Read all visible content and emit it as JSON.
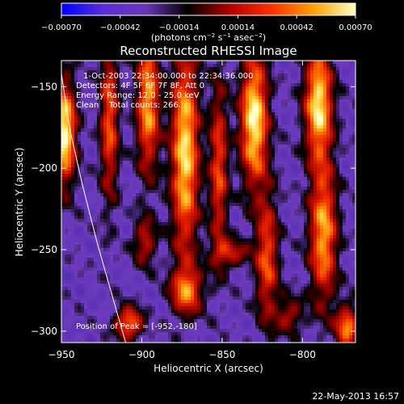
{
  "chart_data": {
    "type": "heatmap",
    "title": "Reconstructed RHESSI Image",
    "xlabel": "Heliocentric X (arcsec)",
    "ylabel": "Heliocentric Y (arcsec)",
    "xlim": [
      -950,
      -767
    ],
    "ylim": [
      -307,
      -134
    ],
    "x_ticks": [
      -950,
      -900,
      -850,
      -800
    ],
    "x_tick_labels": [
      "−950",
      "−900",
      "−850",
      "−800"
    ],
    "y_ticks": [
      -150,
      -200,
      -250,
      -300
    ],
    "y_tick_labels": [
      "−150",
      "−200",
      "−250",
      "−300"
    ],
    "colorbar": {
      "range": [
        -0.0007,
        0.0007
      ],
      "ticks": [
        -0.0007,
        -0.00042,
        -0.00014,
        0.00014,
        0.00042,
        0.0007
      ],
      "tick_labels": [
        "−0.00070",
        "−0.00042",
        "−0.00014",
        "0.00014",
        "0.00042",
        "0.00070"
      ],
      "unit_parts": [
        "(photons cm",
        "−2",
        " s",
        "−1",
        " asec",
        "−2",
        ")"
      ],
      "colors": [
        "#0000ff",
        "#5a2dd8",
        "#6a36b8",
        "#000000",
        "#b00000",
        "#ff3000",
        "#ffa000",
        "#ffffc0"
      ]
    },
    "annotations": {
      "line1": "1-Oct-2003 22:34:00.000 to 22:34:36.000",
      "line2": "Detectors: 4F 5F 6F 7F 8F, Att 0",
      "line3": "Energy Range: 12.0 - 25.0 keV",
      "line4": "Clean    Total counts: 266.",
      "peak": "Position of Peak = [-952,-180]"
    },
    "peak_position": [
      -952,
      -180
    ],
    "limb_curve": [
      [
        -950,
        -142
      ],
      [
        -945,
        -175
      ],
      [
        -937,
        -210
      ],
      [
        -928,
        -245
      ],
      [
        -917,
        -283
      ],
      [
        -910,
        -307
      ]
    ],
    "sources": [
      {
        "x": -948,
        "y": -178,
        "sx": 5,
        "sy": 22,
        "amp": 1.0
      },
      {
        "x": -920,
        "y": -170,
        "sx": 4,
        "sy": 35,
        "amp": 0.62
      },
      {
        "x": -908,
        "y": -295,
        "sx": 6,
        "sy": 7,
        "amp": 0.7
      },
      {
        "x": -896,
        "y": -160,
        "sx": 5,
        "sy": 30,
        "amp": 0.78
      },
      {
        "x": -873,
        "y": -190,
        "sx": 6,
        "sy": 45,
        "amp": 0.9
      },
      {
        "x": -872,
        "y": -275,
        "sx": 7,
        "sy": 10,
        "amp": 0.62
      },
      {
        "x": -852,
        "y": -200,
        "sx": 4,
        "sy": 38,
        "amp": 0.58
      },
      {
        "x": -830,
        "y": -170,
        "sx": 6,
        "sy": 28,
        "amp": 0.97
      },
      {
        "x": -822,
        "y": -255,
        "sx": 5,
        "sy": 28,
        "amp": 0.6
      },
      {
        "x": -790,
        "y": -160,
        "sx": 6,
        "sy": 24,
        "amp": 0.93
      },
      {
        "x": -787,
        "y": -240,
        "sx": 6,
        "sy": 30,
        "amp": 0.78
      },
      {
        "x": -772,
        "y": -297,
        "sx": 5,
        "sy": 9,
        "amp": 0.72
      },
      {
        "x": -845,
        "y": -252,
        "sx": 8,
        "sy": 6,
        "amp": 0.45
      },
      {
        "x": -898,
        "y": -245,
        "sx": 5,
        "sy": 10,
        "amp": 0.45
      },
      {
        "x": -808,
        "y": -290,
        "sx": 6,
        "sy": 8,
        "amp": 0.4
      }
    ]
  },
  "footer": {
    "timestamp": "22-May-2013 16:57"
  }
}
